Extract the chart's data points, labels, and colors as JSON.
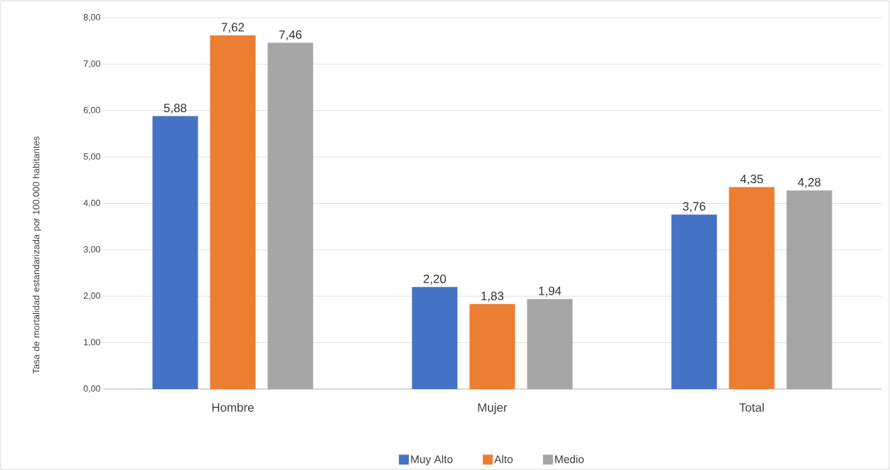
{
  "chart_data": {
    "type": "bar",
    "ylabel": "Tasa de mortalidad estandarizada por 100.000 habitantes",
    "categories": [
      "Hombre",
      "Mujer",
      "Total"
    ],
    "series": [
      {
        "name": "Muy Alto",
        "color": "#4472c4",
        "values": [
          5.88,
          2.2,
          3.76
        ],
        "value_labels": [
          "5,88",
          "2,20",
          "3,76"
        ]
      },
      {
        "name": "Alto",
        "color": "#ed7d31",
        "values": [
          7.62,
          1.83,
          4.35
        ],
        "value_labels": [
          "7,62",
          "1,83",
          "4,35"
        ]
      },
      {
        "name": "Medio",
        "color": "#a5a5a5",
        "values": [
          7.46,
          1.94,
          4.28
        ],
        "value_labels": [
          "7,46",
          "1,94",
          "4,28"
        ]
      }
    ],
    "ylim": [
      0,
      8
    ],
    "yticks": [
      {
        "value": 0,
        "label": "0,00"
      },
      {
        "value": 1,
        "label": "1,00"
      },
      {
        "value": 2,
        "label": "2,00"
      },
      {
        "value": 3,
        "label": "3,00"
      },
      {
        "value": 4,
        "label": "4,00"
      },
      {
        "value": 5,
        "label": "5,00"
      },
      {
        "value": 6,
        "label": "6,00"
      },
      {
        "value": 7,
        "label": "7,00"
      },
      {
        "value": 8,
        "label": "8,00"
      }
    ],
    "grid": "y",
    "legend": "bottom"
  }
}
